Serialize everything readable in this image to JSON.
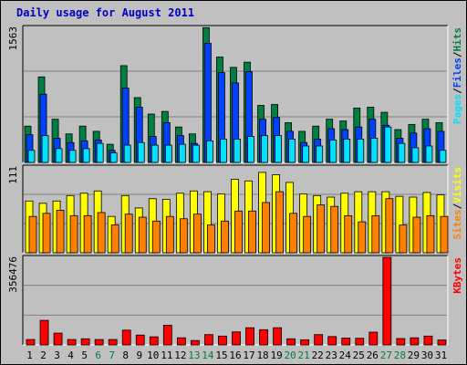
{
  "title": "Daily usage for August 2011",
  "colors": {
    "hits": "#008040",
    "files": "#0040ff",
    "pages": "#00e0ff",
    "visits": "#ffff00",
    "sites": "#ff8000",
    "kbytes": "#ff0000",
    "weekend": "#008040",
    "title": "#0000c0",
    "plot_bg": "#c0c0c0"
  },
  "right_labels": {
    "top": [
      "Pages",
      "/",
      "Files",
      "/",
      "Hits"
    ],
    "mid": [
      "Sites",
      "/",
      "Visits"
    ],
    "bot": [
      "KBytes"
    ]
  },
  "chart_data": [
    {
      "type": "bar",
      "panel": "hits-files-pages",
      "categories": [
        "1",
        "2",
        "3",
        "4",
        "5",
        "6",
        "7",
        "8",
        "9",
        "10",
        "11",
        "12",
        "13",
        "14",
        "15",
        "16",
        "17",
        "18",
        "19",
        "20",
        "21",
        "22",
        "23",
        "24",
        "25",
        "26",
        "27",
        "28",
        "29",
        "30",
        "31"
      ],
      "weekend_days": [
        "6",
        "7",
        "13",
        "14",
        "20",
        "21",
        "27",
        "28"
      ],
      "ymax_label": "1563",
      "ylim": [
        0,
        1563
      ],
      "series": [
        {
          "name": "Hits",
          "values": [
            420,
            990,
            500,
            330,
            420,
            360,
            210,
            1120,
            750,
            560,
            590,
            410,
            330,
            1560,
            1220,
            1100,
            1160,
            660,
            670,
            460,
            360,
            420,
            500,
            480,
            630,
            640,
            580,
            380,
            440,
            500,
            460
          ]
        },
        {
          "name": "Files",
          "values": [
            320,
            790,
            280,
            230,
            250,
            260,
            140,
            860,
            640,
            300,
            460,
            310,
            220,
            1380,
            1040,
            920,
            1050,
            500,
            520,
            360,
            230,
            270,
            390,
            380,
            410,
            500,
            430,
            280,
            340,
            390,
            360
          ]
        },
        {
          "name": "Pages",
          "values": [
            140,
            310,
            160,
            140,
            160,
            220,
            110,
            200,
            230,
            200,
            200,
            210,
            200,
            250,
            270,
            270,
            300,
            310,
            310,
            270,
            190,
            190,
            260,
            270,
            270,
            280,
            410,
            220,
            170,
            190,
            140
          ]
        }
      ]
    },
    {
      "type": "bar",
      "panel": "visits-sites",
      "categories": [
        "1",
        "2",
        "3",
        "4",
        "5",
        "6",
        "7",
        "8",
        "9",
        "10",
        "11",
        "12",
        "13",
        "14",
        "15",
        "16",
        "17",
        "18",
        "19",
        "20",
        "21",
        "22",
        "23",
        "24",
        "25",
        "26",
        "27",
        "28",
        "29",
        "30",
        "31"
      ],
      "ymax_label": "111",
      "ylim": [
        0,
        111
      ],
      "series": [
        {
          "name": "Visits",
          "values": [
            67,
            64,
            67,
            74,
            77,
            80,
            47,
            74,
            58,
            70,
            69,
            77,
            80,
            79,
            76,
            95,
            93,
            104,
            101,
            91,
            76,
            74,
            72,
            77,
            79,
            79,
            79,
            73,
            72,
            78,
            75
          ]
        },
        {
          "name": "Sites",
          "values": [
            47,
            51,
            55,
            48,
            48,
            52,
            36,
            50,
            46,
            41,
            47,
            44,
            50,
            36,
            41,
            54,
            54,
            65,
            79,
            51,
            47,
            62,
            60,
            48,
            40,
            48,
            70,
            36,
            46,
            48,
            47
          ]
        }
      ]
    },
    {
      "type": "bar",
      "panel": "kbytes",
      "categories": [
        "1",
        "2",
        "3",
        "4",
        "5",
        "6",
        "7",
        "8",
        "9",
        "10",
        "11",
        "12",
        "13",
        "14",
        "15",
        "16",
        "17",
        "18",
        "19",
        "20",
        "21",
        "22",
        "23",
        "24",
        "25",
        "26",
        "27",
        "28",
        "29",
        "30",
        "31"
      ],
      "ymax_label": "356476",
      "ylim": [
        0,
        356476
      ],
      "series": [
        {
          "name": "KBytes",
          "values": [
            22000,
            100000,
            48000,
            22000,
            25000,
            22000,
            22000,
            60000,
            40000,
            33000,
            80000,
            29000,
            18000,
            42000,
            36000,
            53000,
            70000,
            62000,
            70000,
            25000,
            21000,
            42000,
            34000,
            28000,
            27000,
            52000,
            356476,
            26000,
            29000,
            36000,
            20000
          ]
        }
      ]
    }
  ]
}
